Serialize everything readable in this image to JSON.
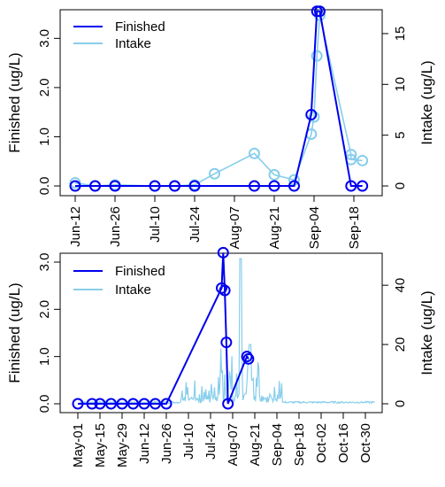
{
  "chart_data": [
    {
      "type": "line",
      "x_tick_labels": [
        "Jun-12",
        "Jun-26",
        "Jul-10",
        "Jul-24",
        "Aug-07",
        "Aug-21",
        "Sep-04",
        "Sep-18"
      ],
      "ylabel_left": "Finished (ug/L)",
      "ylabel_right": "Intake (ug/L)",
      "y_left_ticks": [
        "0.0",
        "1.0",
        "2.0",
        "3.0"
      ],
      "y_right_ticks": [
        "0",
        "5",
        "10",
        "15"
      ],
      "ylim_left": [
        0,
        3.6
      ],
      "ylim_right": [
        0,
        17
      ],
      "legend_position": "top-left",
      "series": [
        {
          "name": "Finished",
          "color": "#0000ee",
          "axis": "left",
          "x": [
            "Jun-12",
            "Jun-19",
            "Jun-26",
            "Jul-10",
            "Jul-17",
            "Jul-24",
            "Aug-14",
            "Aug-21",
            "Aug-28",
            "Sep-03",
            "Sep-05",
            "Sep-06",
            "Sep-17",
            "Sep-21"
          ],
          "values": [
            0,
            0,
            0,
            0,
            0,
            0,
            0,
            0,
            0,
            1.45,
            3.55,
            3.55,
            0,
            0
          ]
        },
        {
          "name": "Intake",
          "color": "#87ceeb",
          "axis": "right",
          "x": [
            "Jun-12",
            "Jun-19",
            "Jun-26",
            "Jul-10",
            "Jul-17",
            "Jul-24",
            "Jul-31",
            "Aug-14",
            "Aug-21",
            "Aug-28",
            "Sep-03",
            "Sep-04",
            "Sep-05",
            "Sep-06",
            "Sep-17",
            "Sep-17",
            "Sep-21"
          ],
          "values": [
            0.3,
            0,
            0.1,
            0,
            0,
            0.1,
            1.2,
            3.2,
            1.1,
            0.6,
            5.1,
            6.8,
            12.8,
            16.8,
            3.1,
            2.6,
            2.5
          ]
        }
      ]
    },
    {
      "type": "line",
      "x_tick_labels": [
        "May-01",
        "May-15",
        "May-29",
        "Jun-12",
        "Jun-26",
        "Jul-10",
        "Jul-24",
        "Aug-07",
        "Aug-21",
        "Sep-04",
        "Sep-18",
        "Oct-02",
        "Oct-16",
        "Oct-30"
      ],
      "ylabel_left": "Finished (ug/L)",
      "ylabel_right": "Intake (ug/L)",
      "y_left_ticks": [
        "0.0",
        "1.0",
        "2.0",
        "3.0"
      ],
      "y_right_ticks": [
        "0",
        "20",
        "40"
      ],
      "ylim_left": [
        0,
        3.3
      ],
      "ylim_right": [
        0,
        52
      ],
      "legend_position": "top-left",
      "series": [
        {
          "name": "Finished",
          "color": "#0000ee",
          "axis": "left",
          "x": [
            "May-01",
            "May-10",
            "May-15",
            "May-22",
            "May-29",
            "Jun-05",
            "Jun-12",
            "Jun-19",
            "Jun-26",
            "Jul-31",
            "Aug-01",
            "Aug-02",
            "Aug-03",
            "Aug-04",
            "Aug-16",
            "Aug-17"
          ],
          "values": [
            0,
            0,
            0,
            0,
            0,
            0,
            0,
            0,
            0,
            2.45,
            3.2,
            2.4,
            1.3,
            0,
            1.0,
            0.95
          ]
        },
        {
          "name": "Intake",
          "color": "#87ceeb",
          "axis": "right"
        }
      ]
    }
  ],
  "legend": {
    "finished_label": "Finished",
    "intake_label": "Intake"
  }
}
